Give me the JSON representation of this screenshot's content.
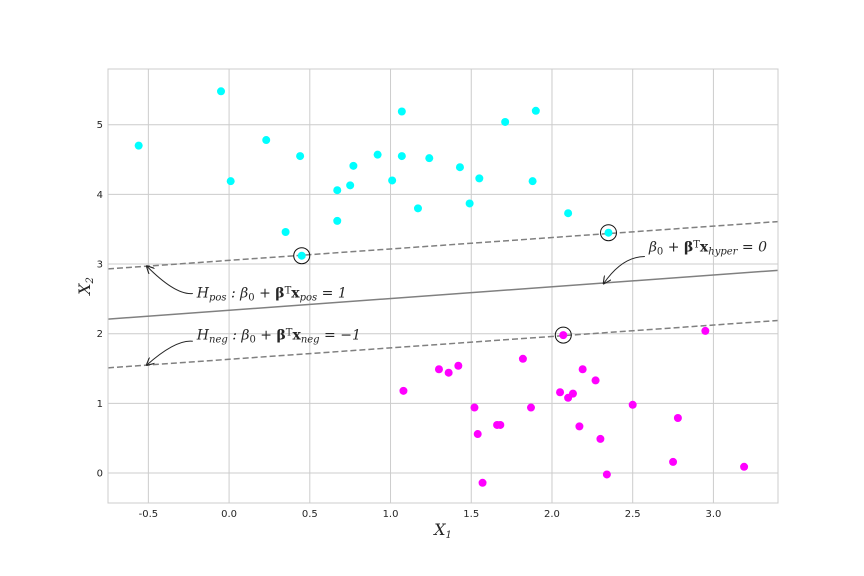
{
  "chart_data": {
    "type": "scatter",
    "title": "",
    "xlabel": {
      "base": "X",
      "sub": "1"
    },
    "ylabel": {
      "base": "X",
      "sub": "2"
    },
    "xlim": [
      -0.75,
      3.4
    ],
    "ylim": [
      -0.43,
      5.8
    ],
    "xticks": [
      -0.5,
      0.0,
      0.5,
      1.0,
      1.5,
      2.0,
      2.5,
      3.0
    ],
    "xtick_labels": [
      "-0.5",
      "0.0",
      "0.5",
      "1.0",
      "1.5",
      "2.0",
      "2.5",
      "3.0"
    ],
    "yticks": [
      0,
      1,
      2,
      3,
      4,
      5
    ],
    "ytick_labels": [
      "0",
      "1",
      "2",
      "3",
      "4",
      "5"
    ],
    "grid": true,
    "series": [
      {
        "color": "#00ffff",
        "points": [
          [
            -0.56,
            4.7
          ],
          [
            -0.05,
            5.48
          ],
          [
            0.01,
            4.19
          ],
          [
            0.23,
            4.78
          ],
          [
            0.44,
            4.55
          ],
          [
            0.35,
            3.46
          ],
          [
            0.67,
            4.06
          ],
          [
            0.67,
            3.62
          ],
          [
            0.75,
            4.13
          ],
          [
            0.77,
            4.41
          ],
          [
            0.92,
            4.57
          ],
          [
            1.01,
            4.2
          ],
          [
            1.07,
            4.55
          ],
          [
            1.07,
            5.19
          ],
          [
            1.17,
            3.8
          ],
          [
            1.24,
            4.52
          ],
          [
            1.43,
            4.39
          ],
          [
            1.49,
            3.87
          ],
          [
            1.55,
            4.23
          ],
          [
            1.71,
            5.04
          ],
          [
            1.88,
            4.19
          ],
          [
            1.9,
            5.2
          ],
          [
            2.1,
            3.73
          ],
          [
            0.45,
            3.12
          ],
          [
            2.35,
            3.45
          ]
        ]
      },
      {
        "color": "#ff00ff",
        "points": [
          [
            1.08,
            1.18
          ],
          [
            1.3,
            1.49
          ],
          [
            1.36,
            1.44
          ],
          [
            1.42,
            1.54
          ],
          [
            1.52,
            0.94
          ],
          [
            1.54,
            0.56
          ],
          [
            1.57,
            -0.14
          ],
          [
            1.66,
            0.69
          ],
          [
            1.68,
            0.69
          ],
          [
            1.82,
            1.64
          ],
          [
            1.87,
            0.94
          ],
          [
            2.05,
            1.16
          ],
          [
            2.07,
            1.98
          ],
          [
            2.1,
            1.08
          ],
          [
            2.13,
            1.14
          ],
          [
            2.17,
            0.67
          ],
          [
            2.19,
            1.49
          ],
          [
            2.27,
            1.33
          ],
          [
            2.3,
            0.49
          ],
          [
            2.34,
            -0.02
          ],
          [
            2.5,
            0.98
          ],
          [
            2.75,
            0.16
          ],
          [
            2.78,
            0.79
          ],
          [
            2.95,
            2.04
          ],
          [
            3.19,
            0.09
          ]
        ]
      }
    ],
    "support_vectors": [
      [
        0.45,
        3.12
      ],
      [
        2.35,
        3.45
      ],
      [
        2.07,
        1.98
      ]
    ],
    "lines": [
      {
        "role": "hyperplane",
        "style": "solid",
        "color": "#808080",
        "from": [
          -0.75,
          2.21
        ],
        "to": [
          3.4,
          2.91
        ]
      },
      {
        "role": "positive margin",
        "style": "dashed",
        "color": "#808080",
        "from": [
          -0.75,
          2.93
        ],
        "to": [
          3.4,
          3.61
        ]
      },
      {
        "role": "negative margin",
        "style": "dashed",
        "color": "#808080",
        "from": [
          -0.75,
          1.51
        ],
        "to": [
          3.4,
          2.19
        ]
      }
    ],
    "annotations": [
      {
        "text_parts": [
          "β",
          "0",
          " + ",
          "β",
          "T",
          "x",
          "hyper",
          " = 0"
        ],
        "text_at": [
          2.6,
          3.18
        ],
        "arrow_to": [
          2.32,
          2.72
        ]
      },
      {
        "text_parts": [
          "H",
          "pos",
          " :  β",
          "0",
          " + ",
          "β",
          "T",
          "x",
          "pos",
          " = 1"
        ],
        "text_at": [
          -0.2,
          2.52
        ],
        "arrow_to": [
          -0.51,
          2.97
        ]
      },
      {
        "text_parts": [
          "H",
          "neg",
          " :  β",
          "0",
          " + ",
          "β",
          "T",
          "x",
          "neg",
          " = −1"
        ],
        "text_at": [
          -0.2,
          1.92
        ],
        "arrow_to": [
          -0.51,
          1.55
        ]
      }
    ]
  }
}
